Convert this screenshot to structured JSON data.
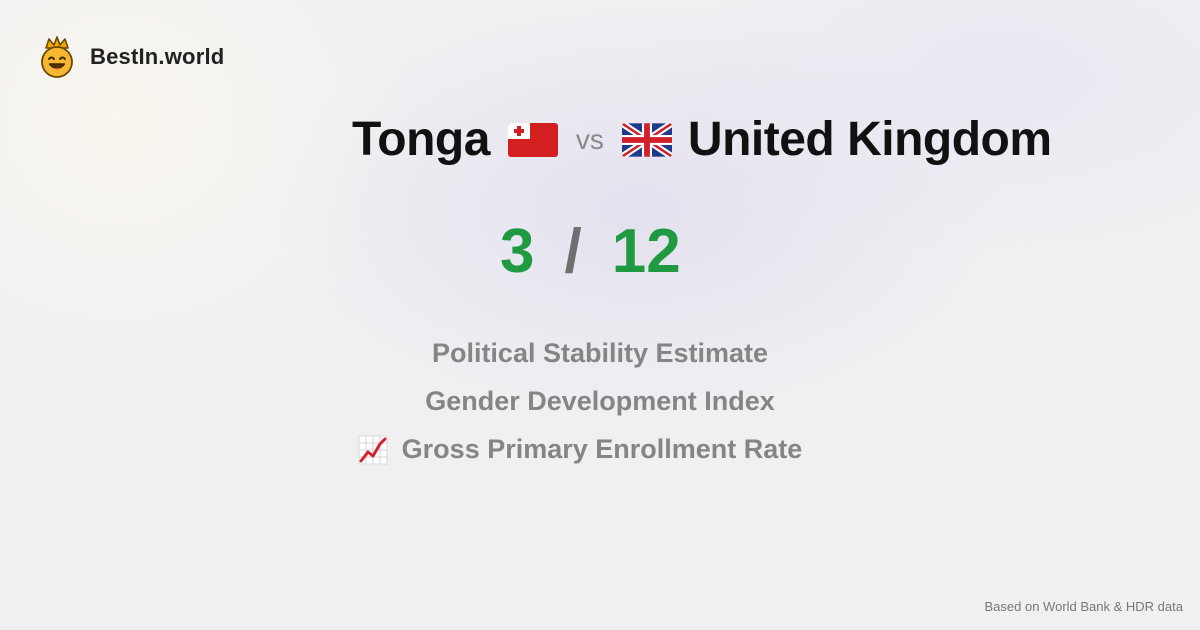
{
  "brand": {
    "name": "BestIn.world",
    "logo_icon": "crowned-smiley-icon"
  },
  "comparison": {
    "country_a": "Tonga",
    "flag_a": "tonga-flag-icon",
    "vs_label": "vs",
    "flag_b": "uk-flag-icon",
    "country_b": "United Kingdom"
  },
  "score": {
    "a": "3",
    "separator": "/",
    "b": "12"
  },
  "metrics": [
    {
      "label": "Political Stability Estimate",
      "icon": ""
    },
    {
      "label": "Gender Development Index",
      "icon": ""
    },
    {
      "label": "Gross Primary Enrollment Rate",
      "icon": "chart-increasing-icon"
    }
  ],
  "footer": {
    "source": "Based on World Bank & HDR data"
  },
  "colors": {
    "score": "#1f9a40",
    "metric_text": "#858585",
    "title": "#111111"
  }
}
